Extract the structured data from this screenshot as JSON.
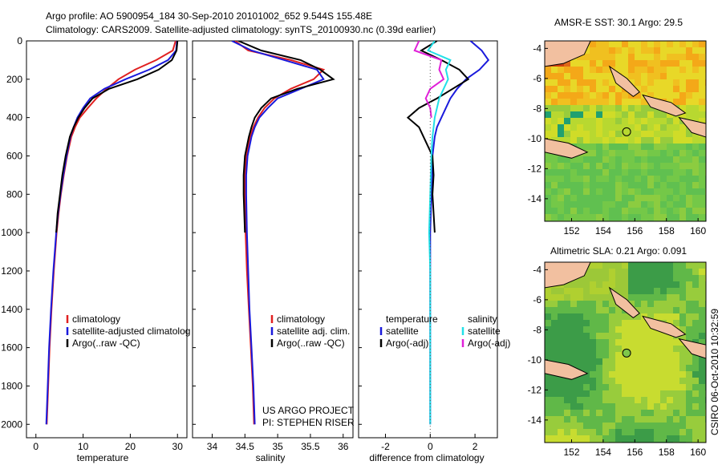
{
  "header": {
    "title_line1": "Argo profile: AO 5900954_184 30-Sep-2010 20101002_652 9.544S 155.48E",
    "title_line2": "Climatology: CARS2009. Satellite-adjusted climatology: synTS_20100930.nc (0.39d earlier)"
  },
  "colors": {
    "climatology": "#e02020",
    "satellite": "#1a1adc",
    "argo": "#000000",
    "satellite_diff": "#22e0e8",
    "argo_diff": "#e020d8"
  },
  "y_axis": {
    "ticks": [
      "0",
      "200",
      "400",
      "600",
      "800",
      "1000",
      "1200",
      "1400",
      "1600",
      "1800",
      "2000"
    ],
    "range": [
      0,
      2070
    ]
  },
  "chart_data": [
    {
      "type": "line",
      "panel": "temperature",
      "xlabel": "temperature",
      "xlim": [
        -2,
        32
      ],
      "xticks": [
        "0",
        "10",
        "20",
        "30"
      ],
      "ylim": [
        2070,
        0
      ],
      "legend": [
        "climatology",
        "satellite-adjusted climatolog",
        "Argo(..raw -QC)"
      ],
      "series": [
        {
          "name": "climatology",
          "y": [
            0,
            50,
            100,
            150,
            200,
            250,
            300,
            350,
            400,
            450,
            500,
            600,
            700,
            800,
            900,
            1000,
            1200,
            1400,
            1600,
            1800,
            2000
          ],
          "x": [
            29.6,
            29.0,
            25.5,
            21.0,
            17.5,
            15.0,
            12.8,
            11.0,
            9.3,
            8.3,
            7.5,
            6.6,
            5.9,
            5.3,
            4.8,
            4.4,
            3.8,
            3.3,
            2.9,
            2.6,
            2.3
          ]
        },
        {
          "name": "satellite",
          "y": [
            0,
            50,
            100,
            150,
            200,
            250,
            300,
            350,
            400,
            450,
            500,
            600,
            700,
            800,
            900,
            1000,
            1200,
            1400,
            1600,
            1800,
            2000
          ],
          "x": [
            29.9,
            29.7,
            28.0,
            24.0,
            19.0,
            14.5,
            11.5,
            10.0,
            8.8,
            8.0,
            7.3,
            6.5,
            5.8,
            5.2,
            4.7,
            4.3,
            3.7,
            3.2,
            2.8,
            2.5,
            2.2
          ]
        },
        {
          "name": "argo",
          "y": [
            0,
            50,
            100,
            150,
            200,
            250,
            300,
            350,
            400,
            450,
            500,
            600,
            700,
            800,
            900,
            1000
          ],
          "x": [
            30.0,
            29.8,
            28.8,
            26.0,
            21.5,
            15.5,
            12.0,
            10.3,
            9.0,
            8.0,
            7.2,
            6.3,
            5.6,
            5.1,
            4.6,
            4.3
          ]
        }
      ]
    },
    {
      "type": "line",
      "panel": "salinity",
      "xlabel": "salinity",
      "xlim": [
        33.7,
        36.15
      ],
      "xticks": [
        "34",
        "34.5",
        "35",
        "35.5",
        "36"
      ],
      "ylim": [
        2070,
        0
      ],
      "legend": [
        "climatology",
        "satellite adj. clim.",
        "Argo(..raw -QC)"
      ],
      "annotations": [
        "US ARGO PROJECT",
        "PI: STEPHEN RISER"
      ],
      "series": [
        {
          "name": "climatology",
          "y": [
            0,
            50,
            100,
            150,
            200,
            250,
            300,
            350,
            400,
            450,
            500,
            600,
            700,
            800,
            1000,
            1200,
            1400,
            1600,
            1800,
            2000
          ],
          "x": [
            34.35,
            34.55,
            35.2,
            35.7,
            35.55,
            35.2,
            34.95,
            34.8,
            34.7,
            34.63,
            34.58,
            34.52,
            34.5,
            34.5,
            34.51,
            34.53,
            34.56,
            34.59,
            34.62,
            34.64
          ]
        },
        {
          "name": "satellite",
          "y": [
            0,
            50,
            100,
            150,
            200,
            250,
            300,
            350,
            400,
            450,
            500,
            600,
            700,
            800,
            1000,
            1200,
            1400,
            1600,
            1800,
            2000
          ],
          "x": [
            34.3,
            34.6,
            35.1,
            35.6,
            35.7,
            35.35,
            35.0,
            34.85,
            34.72,
            34.65,
            34.6,
            34.54,
            34.52,
            34.52,
            34.53,
            34.55,
            34.57,
            34.6,
            34.63,
            34.65
          ]
        },
        {
          "name": "argo",
          "y": [
            0,
            50,
            100,
            150,
            200,
            250,
            300,
            350,
            400,
            450,
            500,
            600,
            700,
            800,
            1000
          ],
          "x": [
            34.4,
            34.75,
            35.35,
            35.65,
            35.85,
            35.3,
            34.9,
            34.75,
            34.65,
            34.6,
            34.56,
            34.5,
            34.48,
            34.48,
            34.5
          ]
        }
      ]
    },
    {
      "type": "line",
      "panel": "difference",
      "xlabel": "difference from climatology",
      "xlim": [
        -3.2,
        3.0
      ],
      "xticks": [
        "-2",
        "0",
        "2"
      ],
      "ylim": [
        2070,
        0
      ],
      "legend": [
        "temperature",
        "satellite",
        "Argo(-adj)",
        "salinity",
        "satellite",
        "Argo(-adj)"
      ],
      "series": [
        {
          "name": "temperature satellite",
          "y": [
            0,
            50,
            100,
            150,
            200,
            250,
            300,
            350,
            400,
            450,
            500,
            600,
            800,
            1000,
            1200,
            1400,
            1600,
            1800,
            2000
          ],
          "x": [
            1.8,
            2.3,
            2.6,
            2.2,
            1.6,
            1.2,
            0.9,
            0.7,
            0.5,
            0.3,
            0.2,
            0.1,
            0.05,
            0.0,
            0.0,
            0.0,
            0.0,
            0.0,
            0.0
          ]
        },
        {
          "name": "temperature argo",
          "y": [
            0,
            50,
            100,
            150,
            200,
            250,
            300,
            350,
            400,
            450,
            500,
            600,
            700,
            800,
            900,
            1000
          ],
          "x": [
            0.3,
            -0.4,
            0.5,
            1.3,
            1.7,
            1.0,
            0.3,
            -0.5,
            -1.0,
            -0.5,
            -0.3,
            0.1,
            0.15,
            0.1,
            0.15,
            0.2
          ]
        },
        {
          "name": "salinity satellite",
          "y": [
            0,
            50,
            100,
            150,
            200,
            250,
            300,
            400,
            500,
            600,
            800,
            1000,
            1200,
            1400,
            1600,
            1800,
            2000
          ],
          "x": [
            0.2,
            -0.1,
            0.9,
            0.7,
            0.8,
            0.6,
            0.4,
            0.2,
            0.1,
            0.05,
            0.0,
            -0.05,
            0.0,
            0.0,
            0.0,
            0.0,
            0.0
          ]
        },
        {
          "name": "salinity argo",
          "y": [
            0,
            50,
            100,
            150,
            200,
            250,
            300,
            350,
            400
          ],
          "x": [
            -0.5,
            -0.7,
            0.5,
            0.4,
            0.6,
            0.0,
            -0.2,
            0.0,
            0.05
          ]
        }
      ]
    },
    {
      "type": "heatmap",
      "panel": "map-sst",
      "title": "AMSR-E SST: 30.1 Argo: 29.5",
      "xlim": [
        150.3,
        160.5
      ],
      "ylim": [
        -15.5,
        -3.5
      ],
      "xticks": [
        "152",
        "154",
        "156",
        "158",
        "160"
      ],
      "yticks": [
        "-4",
        "-6",
        "-8",
        "-10",
        "-12",
        "-14"
      ],
      "argo_position": {
        "lon": 155.48,
        "lat": -9.544
      }
    },
    {
      "type": "heatmap",
      "panel": "map-sla",
      "title": "Altimetric SLA: 0.21 Argo: 0.091",
      "xlim": [
        150.3,
        160.5
      ],
      "ylim": [
        -15.5,
        -3.5
      ],
      "xticks": [
        "152",
        "154",
        "156",
        "158",
        "160"
      ],
      "yticks": [
        "-4",
        "-6",
        "-8",
        "-10",
        "-12",
        "-14"
      ],
      "argo_position": {
        "lon": 155.48,
        "lat": -9.544
      }
    }
  ],
  "footer": {
    "stamp": "CSIRO 06-Oct-2010 10:32:59"
  }
}
